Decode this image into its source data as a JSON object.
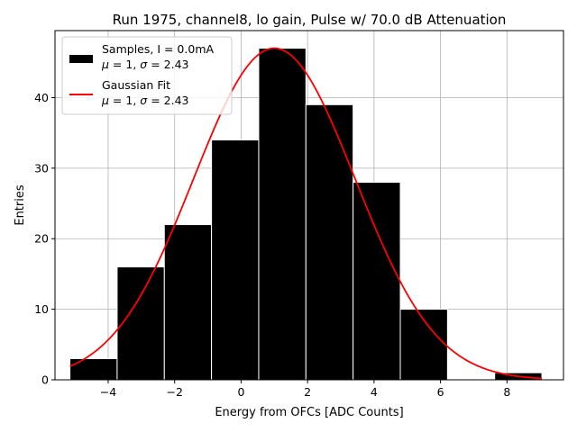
{
  "chart_data": {
    "type": "histogram",
    "title": "Run 1975, channel8, lo gain, Pulse w/ 70.0 dB Attenuation",
    "xlabel": "Energy from OFCs [ADC Counts]",
    "ylabel": "Entries",
    "xlim": [
      -5.6,
      9.7
    ],
    "ylim": [
      0,
      49.5
    ],
    "grid": true,
    "xticks": [
      -4,
      -2,
      0,
      2,
      4,
      6,
      8
    ],
    "xtick_labels": [
      "−4",
      "−2",
      "0",
      "2",
      "4",
      "6",
      "8"
    ],
    "yticks": [
      0,
      10,
      20,
      30,
      40
    ],
    "ytick_labels": [
      "0",
      "10",
      "20",
      "30",
      "40"
    ],
    "bins": [
      {
        "left": -5.15,
        "right": -3.73,
        "count": 3
      },
      {
        "left": -3.73,
        "right": -2.31,
        "count": 16
      },
      {
        "left": -2.31,
        "right": -0.89,
        "count": 22
      },
      {
        "left": -0.89,
        "right": 0.53,
        "count": 34
      },
      {
        "left": 0.53,
        "right": 1.95,
        "count": 47
      },
      {
        "left": 1.95,
        "right": 3.37,
        "count": 39
      },
      {
        "left": 3.37,
        "right": 4.79,
        "count": 28
      },
      {
        "left": 4.79,
        "right": 6.21,
        "count": 10
      },
      {
        "left": 6.21,
        "right": 7.63,
        "count": 0
      },
      {
        "left": 7.63,
        "right": 9.05,
        "count": 1
      }
    ],
    "fit": {
      "name": "Gaussian Fit",
      "mu": 1.0,
      "sigma": 2.43,
      "amplitude": 47,
      "x_range": [
        -5.15,
        9.05
      ],
      "color": "#ff0000"
    },
    "bar_color": "#000000",
    "bar_edge_color": "#ffffff",
    "legend": {
      "position": "top-left",
      "entries": [
        {
          "kind": "bar",
          "line1": "Samples, I = 0.0mA",
          "line2_prefix_mu": "μ",
          "line2_eq1": " = 1, ",
          "line2_prefix_sigma": "σ",
          "line2_eq2": " = 2.43"
        },
        {
          "kind": "line",
          "line1": "Gaussian Fit",
          "line2_prefix_mu": "μ",
          "line2_eq1": " = 1, ",
          "line2_prefix_sigma": "σ",
          "line2_eq2": " = 2.43"
        }
      ]
    }
  }
}
